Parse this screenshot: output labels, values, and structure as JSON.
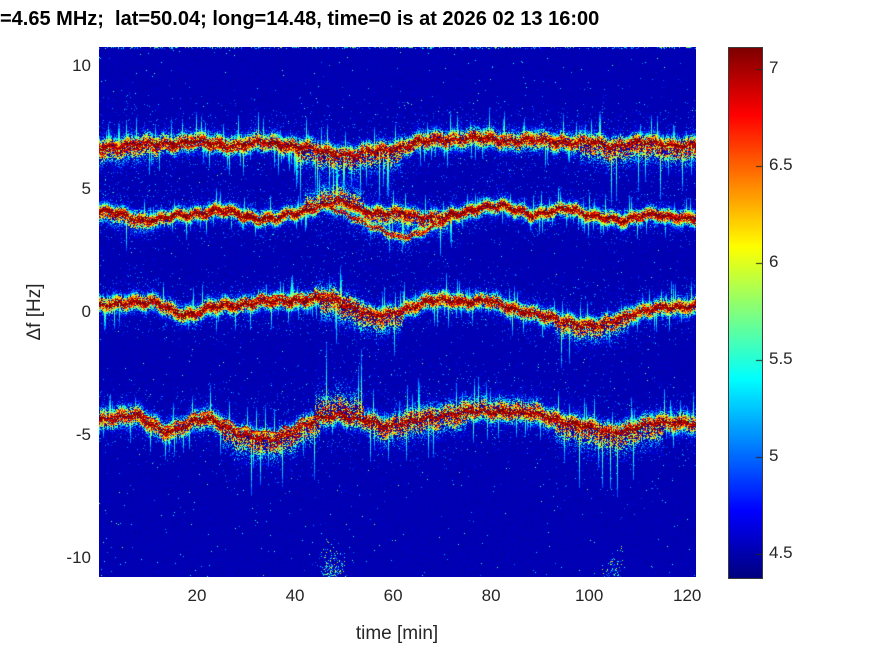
{
  "title": "=4.65 MHz;  lat=50.04; long=14.48, time=0 is at 2026 02 13 16:00",
  "chart_data": {
    "type": "heatmap",
    "title": "=4.65 MHz;  lat=50.04; long=14.48, time=0 is at 2026 02 13 16:00",
    "xlabel": "time [min]",
    "ylabel": "Δf [Hz]",
    "x_ticks": [
      20,
      40,
      60,
      80,
      100,
      120
    ],
    "y_ticks": [
      10,
      5,
      0,
      -5,
      -10
    ],
    "xlim": [
      0,
      121.8
    ],
    "ylim": [
      -10.77,
      10.78
    ],
    "grid": false,
    "colormap": "jet",
    "background_value": 4.48,
    "colorbar": {
      "vmin": 4.38,
      "vmax": 7.11,
      "ticks": [
        7,
        6.5,
        6,
        5.5,
        5,
        4.5
      ],
      "position": "right"
    },
    "reference_line": {
      "df": 4.17,
      "style": "dashed"
    },
    "traces": [
      {
        "name": "doppler-trace-plus6.8Hz",
        "sigma": 0.28,
        "t": [
          0,
          5,
          10,
          15,
          20,
          24,
          28,
          32,
          36,
          40,
          44,
          48,
          52,
          56,
          60,
          64,
          68,
          72,
          76,
          80,
          84,
          88,
          92,
          96,
          100,
          104,
          107,
          110,
          113,
          116,
          119,
          122
        ],
        "df": [
          6.7,
          6.8,
          6.85,
          6.9,
          6.95,
          6.85,
          6.8,
          6.9,
          6.9,
          6.75,
          6.6,
          6.45,
          6.4,
          6.55,
          6.65,
          6.85,
          7.0,
          7.05,
          7.1,
          7.05,
          7.0,
          7.0,
          6.95,
          6.95,
          6.9,
          6.75,
          6.85,
          6.9,
          6.85,
          6.8,
          6.8,
          6.8
        ],
        "spreads": [
          [
            40,
            62,
            1.9,
            "below"
          ],
          [
            98,
            122,
            1.9,
            "below"
          ],
          [
            0,
            12,
            1.6,
            "below"
          ]
        ],
        "second": [
          [
            0,
            30,
            -0.18
          ]
        ]
      },
      {
        "name": "doppler-trace-plus4Hz",
        "sigma": 0.22,
        "t": [
          0,
          4,
          8,
          12,
          16,
          20,
          24,
          28,
          32,
          36,
          40,
          44,
          48,
          51,
          54,
          58,
          62,
          66,
          70,
          74,
          78,
          82,
          85,
          88,
          92,
          96,
          100,
          104,
          107,
          110,
          113,
          116,
          119,
          122
        ],
        "df": [
          4.1,
          4.0,
          3.8,
          3.75,
          3.95,
          4.05,
          4.15,
          4.05,
          3.85,
          3.8,
          4.05,
          4.3,
          4.5,
          4.4,
          4.15,
          4.0,
          4.05,
          3.9,
          3.85,
          4.05,
          4.3,
          4.3,
          4.15,
          4.0,
          4.1,
          4.2,
          4.0,
          3.8,
          3.7,
          3.95,
          4.05,
          3.85,
          3.8,
          3.9
        ],
        "spreads": [
          [
            42,
            54,
            2.2,
            "above"
          ],
          [
            54,
            72,
            1.8,
            "below"
          ],
          [
            0,
            10,
            1.5,
            "below"
          ]
        ],
        "second": [
          [
            20,
            35,
            -0.15
          ]
        ]
      },
      {
        "name": "doppler-trace-plus4Hz-dip-branch",
        "sigma": 0.15,
        "weak": true,
        "partial": true,
        "core": 6.65,
        "t": [
          46,
          52,
          57,
          61,
          65,
          69,
          73
        ],
        "df": [
          4.35,
          3.85,
          3.4,
          3.0,
          3.25,
          3.6,
          3.95
        ],
        "spreads": []
      },
      {
        "name": "doppler-trace-0Hz",
        "sigma": 0.25,
        "t": [
          0,
          4,
          8,
          12,
          16,
          19,
          22,
          26,
          30,
          35,
          40,
          44,
          48,
          52,
          56,
          59,
          63,
          67,
          71,
          75,
          79,
          83,
          87,
          91,
          95,
          99,
          102,
          105,
          108,
          111,
          114,
          118,
          122
        ],
        "df": [
          0.25,
          0.4,
          0.45,
          0.35,
          0.0,
          -0.1,
          0.15,
          0.3,
          0.35,
          0.45,
          0.5,
          0.55,
          0.5,
          0.2,
          -0.15,
          -0.1,
          0.2,
          0.45,
          0.5,
          0.45,
          0.45,
          0.25,
          0.05,
          -0.2,
          -0.35,
          -0.5,
          -0.55,
          -0.35,
          -0.05,
          0.05,
          0.15,
          0.25,
          0.3
        ],
        "spreads": [
          [
            45,
            62,
            2.1,
            "below"
          ],
          [
            93,
            108,
            1.8,
            "below"
          ],
          [
            44,
            54,
            1.5,
            "above"
          ]
        ],
        "second": [
          [
            28,
            50,
            0.2
          ]
        ]
      },
      {
        "name": "doppler-trace-minus4.5Hz",
        "sigma": 0.3,
        "t": [
          0,
          4,
          7,
          10,
          13,
          16,
          19,
          22,
          25,
          28,
          31,
          34,
          37,
          40,
          43,
          46,
          49,
          52,
          55,
          58,
          61,
          64,
          68,
          72,
          76,
          80,
          84,
          88,
          91,
          95,
          98,
          101,
          104,
          108,
          111,
          114,
          118,
          122
        ],
        "df": [
          -4.4,
          -4.2,
          -4.15,
          -4.5,
          -4.85,
          -4.7,
          -4.45,
          -4.3,
          -4.55,
          -4.9,
          -5.1,
          -5.2,
          -5.05,
          -4.8,
          -4.5,
          -4.25,
          -4.1,
          -4.3,
          -4.45,
          -4.65,
          -4.5,
          -4.4,
          -4.3,
          -4.1,
          -4.0,
          -4.05,
          -4.0,
          -4.1,
          -4.25,
          -4.45,
          -4.6,
          -4.75,
          -4.9,
          -4.75,
          -4.6,
          -4.5,
          -4.45,
          -4.5
        ],
        "spreads": [
          [
            25,
            45,
            1.9,
            "below"
          ],
          [
            55,
            75,
            1.6,
            "below"
          ],
          [
            93,
            115,
            2.0,
            "below"
          ],
          [
            44,
            54,
            2.4,
            "above"
          ],
          [
            60,
            90,
            1.3,
            "above"
          ]
        ],
        "second": [
          [
            8,
            22,
            0.25
          ],
          [
            25,
            42,
            0.3
          ]
        ]
      }
    ],
    "blobs": [
      {
        "t": 47.5,
        "df": -10.55,
        "st": 1.3,
        "sdf": 0.5,
        "n": 260
      },
      {
        "t": 105.0,
        "df": -10.6,
        "st": 1.1,
        "sdf": 0.4,
        "n": 110
      }
    ]
  }
}
